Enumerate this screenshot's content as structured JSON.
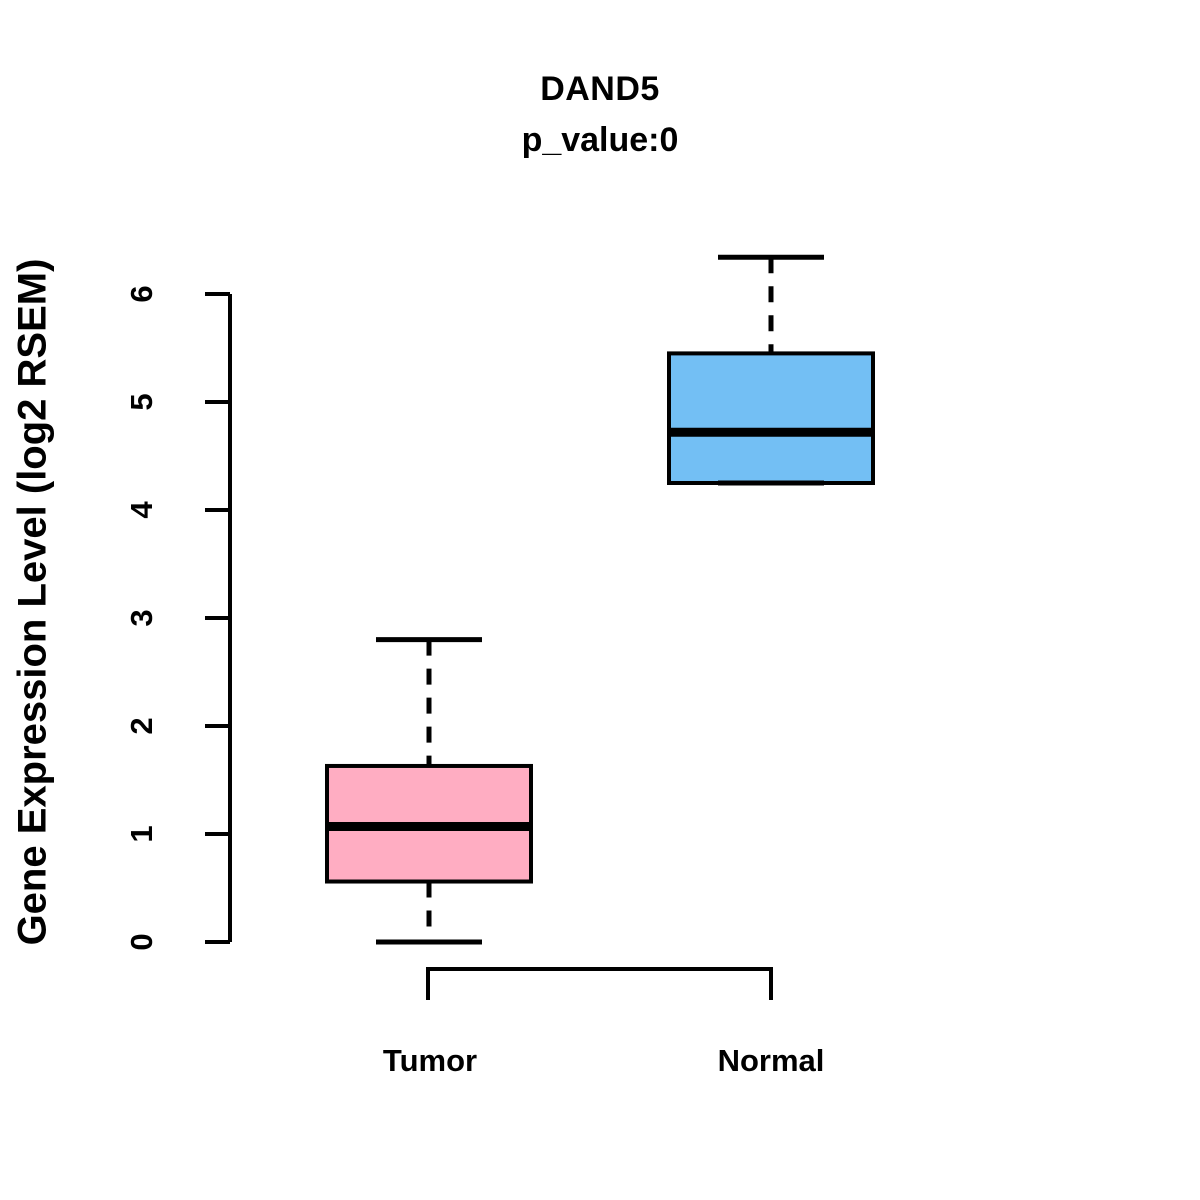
{
  "chart_data": {
    "type": "boxplot",
    "title": "DAND5",
    "subtitle": "p_value:0",
    "ylabel": "Gene Expression Level (log2 RSEM)",
    "categories": [
      "Tumor",
      "Normal"
    ],
    "yticks": [
      0,
      1,
      2,
      3,
      4,
      5,
      6
    ],
    "ylim": [
      0,
      6.5
    ],
    "grid": false,
    "legend": "none",
    "axis_color": "#000000",
    "whisker_style": "dashed",
    "series": [
      {
        "name": "Tumor",
        "fill_color": "#FFADC2",
        "border_color": "#000000",
        "whisker_low": 0.0,
        "q1": 0.56,
        "median": 1.07,
        "q3": 1.63,
        "whisker_high": 2.8
      },
      {
        "name": "Normal",
        "fill_color": "#73BFF4",
        "border_color": "#000000",
        "whisker_low": 4.25,
        "q1": 4.25,
        "median": 4.72,
        "q3": 5.45,
        "whisker_high": 6.34
      }
    ],
    "comparison_bracket": {
      "from": "Tumor",
      "to": "Normal"
    }
  }
}
